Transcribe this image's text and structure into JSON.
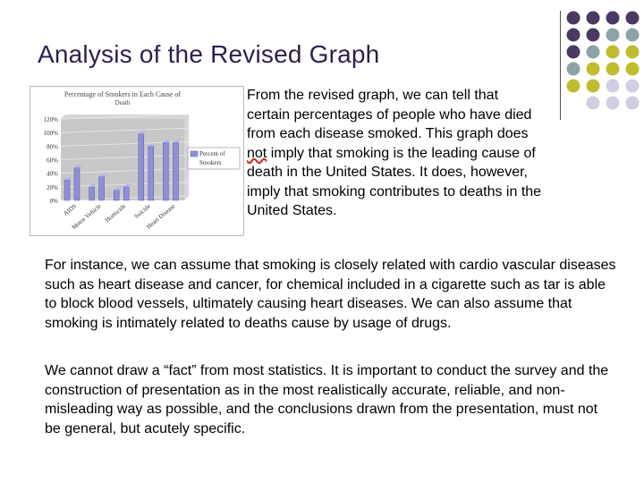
{
  "slide": {
    "title": "Analysis of the Revised Graph",
    "side_text": {
      "before": "From the revised graph, we can tell that certain percentages of people who have died from each disease smoked. This graph does ",
      "emphasis": "not",
      "after": " imply that smoking is the leading cause of death in the United States. It does, however, imply that smoking contributes to deaths in the United States."
    },
    "paragraphs": [
      "For instance, we can assume that smoking is closely related with cardio vascular diseases such as heart disease and cancer, for chemical included in a cigarette such as tar is able to block blood vessels, ultimately causing heart diseases. We can also assume that smoking is intimately related to deaths cause by usage of drugs.",
      "We cannot draw a “fact” from most statistics. It is important to conduct the survey and the construction of presentation as in the most realistically accurate, reliable, and non-misleading way as possible, and the conclusions drawn from the presentation, must not be general, but acutely specific."
    ],
    "decor_colors": {
      "purple": "#4a3a63",
      "teal": "#8ea3a7",
      "olive": "#c0bc2f",
      "lilac": "#d1cde2"
    }
  },
  "chart_data": {
    "type": "bar",
    "title": "Percentage of Smokers in Each Cause of Death",
    "categories": [
      "AIDS",
      "Motor Vehicle",
      "Homicide",
      "Suicide",
      "Heart Disease"
    ],
    "series": [
      {
        "name": "Percent of Smokers",
        "values": [
          [
            30,
            48
          ],
          [
            20,
            35
          ],
          [
            15,
            20
          ],
          [
            98,
            80
          ],
          [
            85,
            85
          ]
        ]
      }
    ],
    "ylim": [
      0,
      120
    ],
    "yticks": [
      "120%",
      "100%",
      "80%",
      "60%",
      "40%",
      "20%",
      "0%"
    ],
    "grid": true,
    "legend": "right",
    "bar_color": "#8f8fd8"
  }
}
